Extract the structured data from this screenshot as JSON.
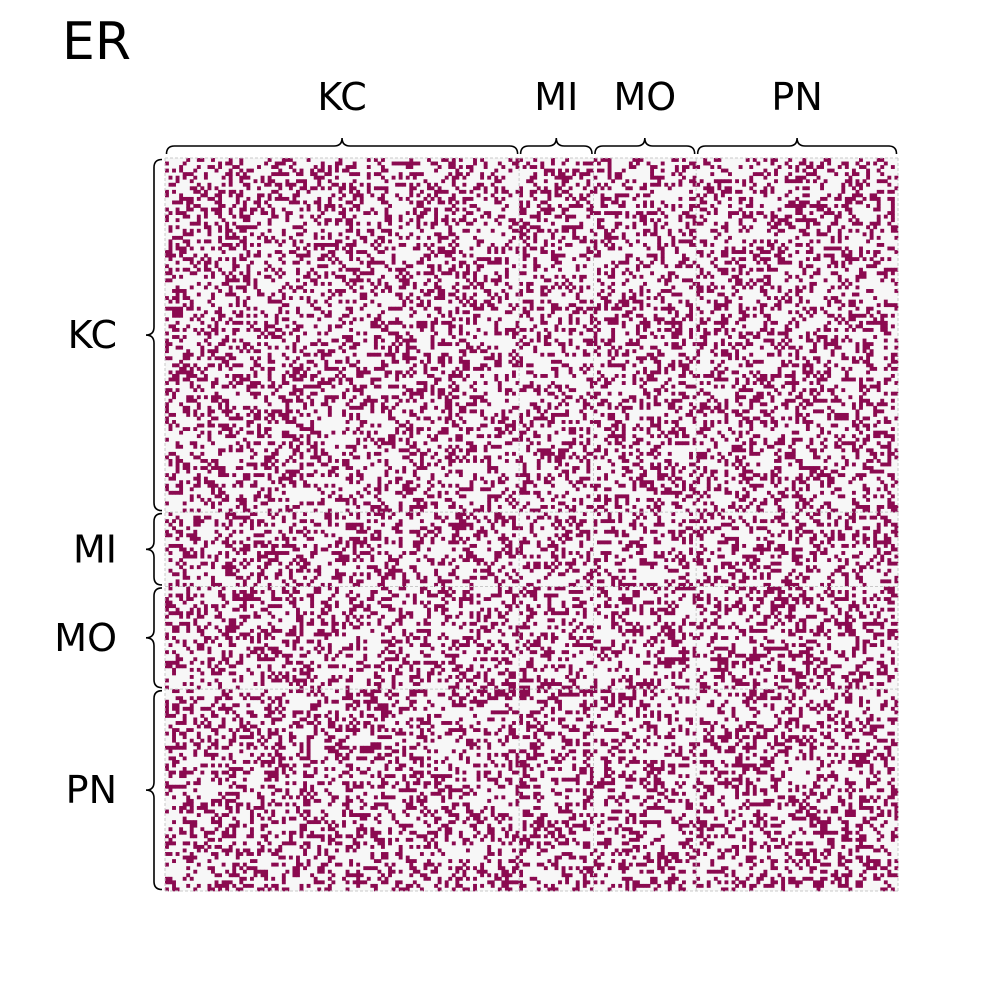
{
  "title": "ER",
  "colors": {
    "edge": "#8b0a50",
    "background": "#f7f7f7",
    "grid": "#c8c8c8",
    "brace": "#000000"
  },
  "chart_data": {
    "type": "heatmap",
    "title": "ER",
    "description_kind": "binary adjacency matrix",
    "groups": [
      {
        "label": "KC",
        "size": 100
      },
      {
        "label": "MI",
        "size": 21
      },
      {
        "label": "MO",
        "size": 29
      },
      {
        "label": "PN",
        "size": 57
      }
    ],
    "n_nodes": 207,
    "edge_density": 0.3,
    "grid": true,
    "values_note": "0/1 entries; individual cells illegible at this resolution, drawn with seeded random fill at the observed density"
  }
}
